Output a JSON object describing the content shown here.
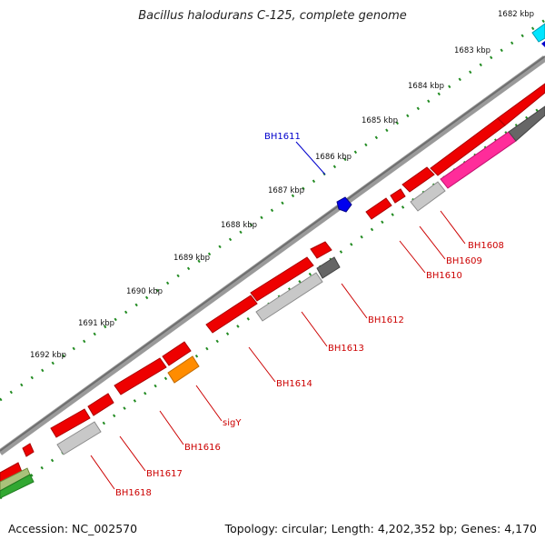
{
  "header": {
    "title": "Bacillus halodurans C-125, complete genome"
  },
  "footer": {
    "accession": "Accession: NC_002570",
    "summary": "Topology: circular; Length: 4,202,352 bp; Genes: 4,170"
  },
  "scale": {
    "unit": "kbp",
    "ticks": [
      "1682 kbp",
      "1683 kbp",
      "1684 kbp",
      "1685 kbp",
      "1686 kbp",
      "1687 kbp",
      "1688 kbp",
      "1689 kbp",
      "1690 kbp",
      "1691 kbp",
      "1692 kbp"
    ]
  },
  "colors": {
    "backbone": "#7a7a7a",
    "tick_dots": "#228b22",
    "cds_red": "#ff0000",
    "label_red": "#cc0000",
    "label_blue": "#0000cc",
    "gene_blue": "#0000ff",
    "gene_orange": "#ff8c00",
    "gene_magenta": "#ff1493",
    "gene_cyan": "#00ffff",
    "gene_gray": "#bdbdbd",
    "gene_darkgray": "#666666",
    "gene_green": "#32a832"
  },
  "gene_labels": [
    {
      "name": "BH1608",
      "color": "red"
    },
    {
      "name": "BH1609",
      "color": "red"
    },
    {
      "name": "BH1610",
      "color": "red"
    },
    {
      "name": "BH1611",
      "color": "blue"
    },
    {
      "name": "BH1612",
      "color": "red"
    },
    {
      "name": "BH1613",
      "color": "red"
    },
    {
      "name": "BH1614",
      "color": "red"
    },
    {
      "name": "sigY",
      "color": "red"
    },
    {
      "name": "BH1616",
      "color": "red"
    },
    {
      "name": "BH1617",
      "color": "red"
    },
    {
      "name": "BH1618",
      "color": "red"
    }
  ]
}
